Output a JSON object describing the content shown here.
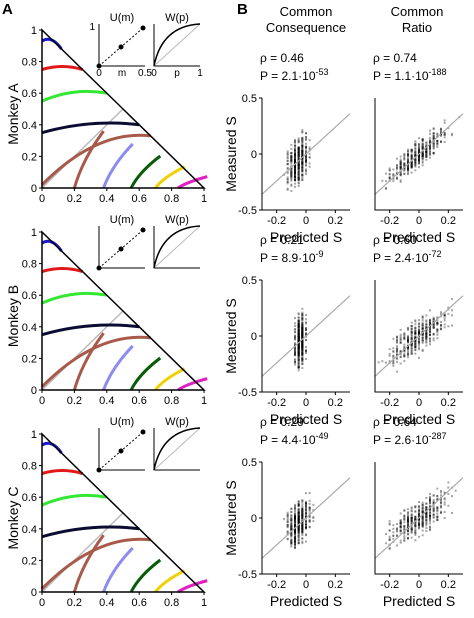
{
  "panel_labels": {
    "a": "A",
    "b": "B"
  },
  "columns": {
    "common_consequence": [
      "Common",
      "Consequence"
    ],
    "common_ratio": [
      "Common",
      "Ratio"
    ]
  },
  "chart_data": [
    {
      "type": "line",
      "panel": "A",
      "row": 0,
      "ylabel": "Monkey A",
      "xlim": [
        0,
        1
      ],
      "ylim": [
        0,
        1
      ],
      "x_ticks": [
        "0",
        "0.2",
        "0.4",
        "0.6",
        "0.8",
        "1"
      ],
      "y_ticks": [
        "0",
        "0.2",
        "0.4",
        "0.6",
        "0.8",
        "1"
      ],
      "inset_labels": {
        "um_title": "U(m)",
        "wp_title": "W(p)",
        "um_x": [
          "0",
          "m",
          "0.5"
        ],
        "um_y": "1",
        "wp_x": [
          "0",
          "p",
          "1"
        ]
      }
    },
    {
      "type": "line",
      "panel": "A",
      "row": 1,
      "ylabel": "Monkey B",
      "xlim": [
        0,
        1
      ],
      "ylim": [
        0,
        1
      ],
      "x_ticks": [
        "0",
        "0.2",
        "0.4",
        "0.6",
        "0.8",
        "1"
      ],
      "y_ticks": [
        "0",
        "0.2",
        "0.4",
        "0.6",
        "0.8",
        "1"
      ],
      "inset_labels": {
        "um_title": "U(m)",
        "wp_title": "W(p)"
      }
    },
    {
      "type": "line",
      "panel": "A",
      "row": 2,
      "ylabel": "Monkey C",
      "xlim": [
        0,
        1
      ],
      "ylim": [
        0,
        1
      ],
      "x_ticks": [
        "0",
        "0.2",
        "0.4",
        "0.6",
        "0.8",
        "1"
      ],
      "y_ticks": [
        "0",
        "0.2",
        "0.4",
        "0.6",
        "0.8",
        "1"
      ],
      "inset_labels": {
        "um_title": "U(m)",
        "wp_title": "W(p)"
      }
    },
    {
      "type": "scatter",
      "panel": "B",
      "row": 0,
      "col": "Common Consequence",
      "rho": "ρ = 0.46",
      "p": "P = 2.1·10",
      "p_exp": "-53",
      "xlabel": "Predicted S",
      "ylabel": "Measured S",
      "xlim": [
        -0.3,
        0.3
      ],
      "ylim": [
        -0.5,
        0.5
      ],
      "x_ticks": [
        "-0.2",
        "0",
        "0.2"
      ],
      "y_ticks": [
        "-0.5",
        "0",
        "0.5"
      ],
      "x_center": -0.05,
      "x_spread": 0.1,
      "slope": 1.4,
      "noise": 0.18
    },
    {
      "type": "scatter",
      "panel": "B",
      "row": 0,
      "col": "Common Ratio",
      "rho": "ρ = 0.74",
      "p": "P = 1.1·10",
      "p_exp": "-188",
      "xlabel": "Predicted S",
      "xlim": [
        -0.3,
        0.3
      ],
      "ylim": [
        -0.5,
        0.5
      ],
      "x_ticks": [
        "-0.2",
        "0",
        "0.2"
      ],
      "x_center": 0.0,
      "x_spread": 0.28,
      "slope": 1.3,
      "noise": 0.1
    },
    {
      "type": "scatter",
      "panel": "B",
      "row": 1,
      "col": "Common Consequence",
      "rho": "ρ = 0.21",
      "p": "P = 8.9·10",
      "p_exp": "-9",
      "xlabel": "Predicted S",
      "ylabel": "Measured S",
      "xlim": [
        -0.3,
        0.3
      ],
      "ylim": [
        -0.5,
        0.5
      ],
      "x_ticks": [
        "-0.2",
        "0",
        "0.2"
      ],
      "y_ticks": [
        "-0.5",
        "0",
        "0.5"
      ],
      "x_center": -0.04,
      "x_spread": 0.05,
      "slope": 1.2,
      "noise": 0.2
    },
    {
      "type": "scatter",
      "panel": "B",
      "row": 1,
      "col": "Common Ratio",
      "rho": "ρ = 0.60",
      "p": "P = 2.4·10",
      "p_exp": "-72",
      "xlabel": "Predicted S",
      "xlim": [
        -0.3,
        0.3
      ],
      "ylim": [
        -0.5,
        0.5
      ],
      "x_ticks": [
        "-0.2",
        "0",
        "0.2"
      ],
      "x_center": 0.0,
      "x_spread": 0.28,
      "slope": 1.1,
      "noise": 0.13
    },
    {
      "type": "scatter",
      "panel": "B",
      "row": 2,
      "col": "Common Consequence",
      "rho": "ρ = 0.29",
      "p": "P = 4.4·10",
      "p_exp": "-49",
      "xlabel": "Predicted S",
      "ylabel": "Measured S",
      "xlim": [
        -0.3,
        0.3
      ],
      "ylim": [
        -0.5,
        0.5
      ],
      "x_ticks": [
        "-0.2",
        "0",
        "0.2"
      ],
      "y_ticks": [
        "-0.5",
        "0",
        "0.5"
      ],
      "x_center": -0.05,
      "x_spread": 0.12,
      "slope": 1.0,
      "noise": 0.16
    },
    {
      "type": "scatter",
      "panel": "B",
      "row": 2,
      "col": "Common Ratio",
      "rho": "ρ = 0.64",
      "p": "P = 2.6·10",
      "p_exp": "-287",
      "xlabel": "Predicted S",
      "xlim": [
        -0.3,
        0.3
      ],
      "ylim": [
        -0.5,
        0.5
      ],
      "x_ticks": [
        "-0.2",
        "0",
        "0.2"
      ],
      "x_center": 0.0,
      "x_spread": 0.28,
      "slope": 1.0,
      "noise": 0.13
    }
  ],
  "curve_colors": [
    "#1a1acc",
    "#e01818",
    "#33e833",
    "#0c0c33",
    "#a85a4a",
    "#8c8cf0",
    "#0a5c0a",
    "#f0d000",
    "#e020c0"
  ]
}
